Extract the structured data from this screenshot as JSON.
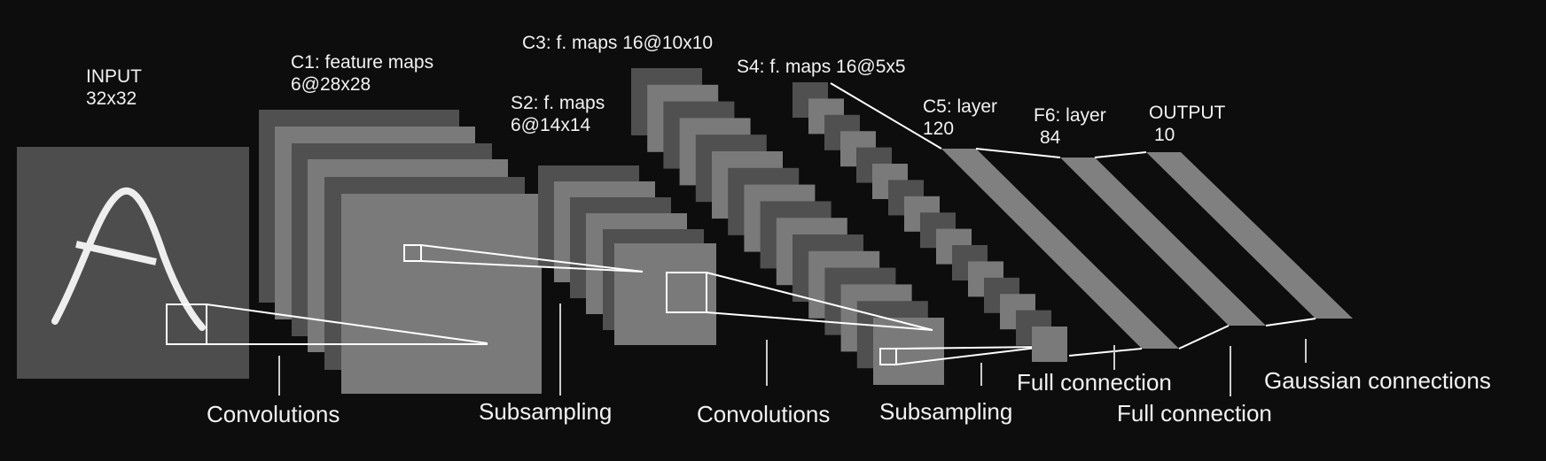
{
  "diagram": {
    "layers": [
      {
        "name": "INPUT",
        "size": "32x32"
      },
      {
        "name": "C1: feature maps",
        "size": "6@28x28"
      },
      {
        "name": "S2: f. maps",
        "size": "6@14x14"
      },
      {
        "name": "C3: f. maps 16@10x10",
        "size": ""
      },
      {
        "name": "S4: f. maps 16@5x5",
        "size": ""
      },
      {
        "name": "C5: layer",
        "size": "120"
      },
      {
        "name": "F6: layer",
        "size": "84"
      },
      {
        "name": "OUTPUT",
        "size": "10"
      }
    ],
    "operations": [
      "Convolutions",
      "Subsampling",
      "Convolutions",
      "Subsampling",
      "Full connection",
      "Full connection",
      "Gaussian connections"
    ]
  },
  "colors": {
    "background": "#0d0d0d",
    "input_fill": "#4d4d4d",
    "map_light": "#7a7a7a",
    "map_dark": "#505050",
    "dense_layer": "#808080",
    "lines": "#ffffff",
    "text": "#f2f2f2"
  }
}
